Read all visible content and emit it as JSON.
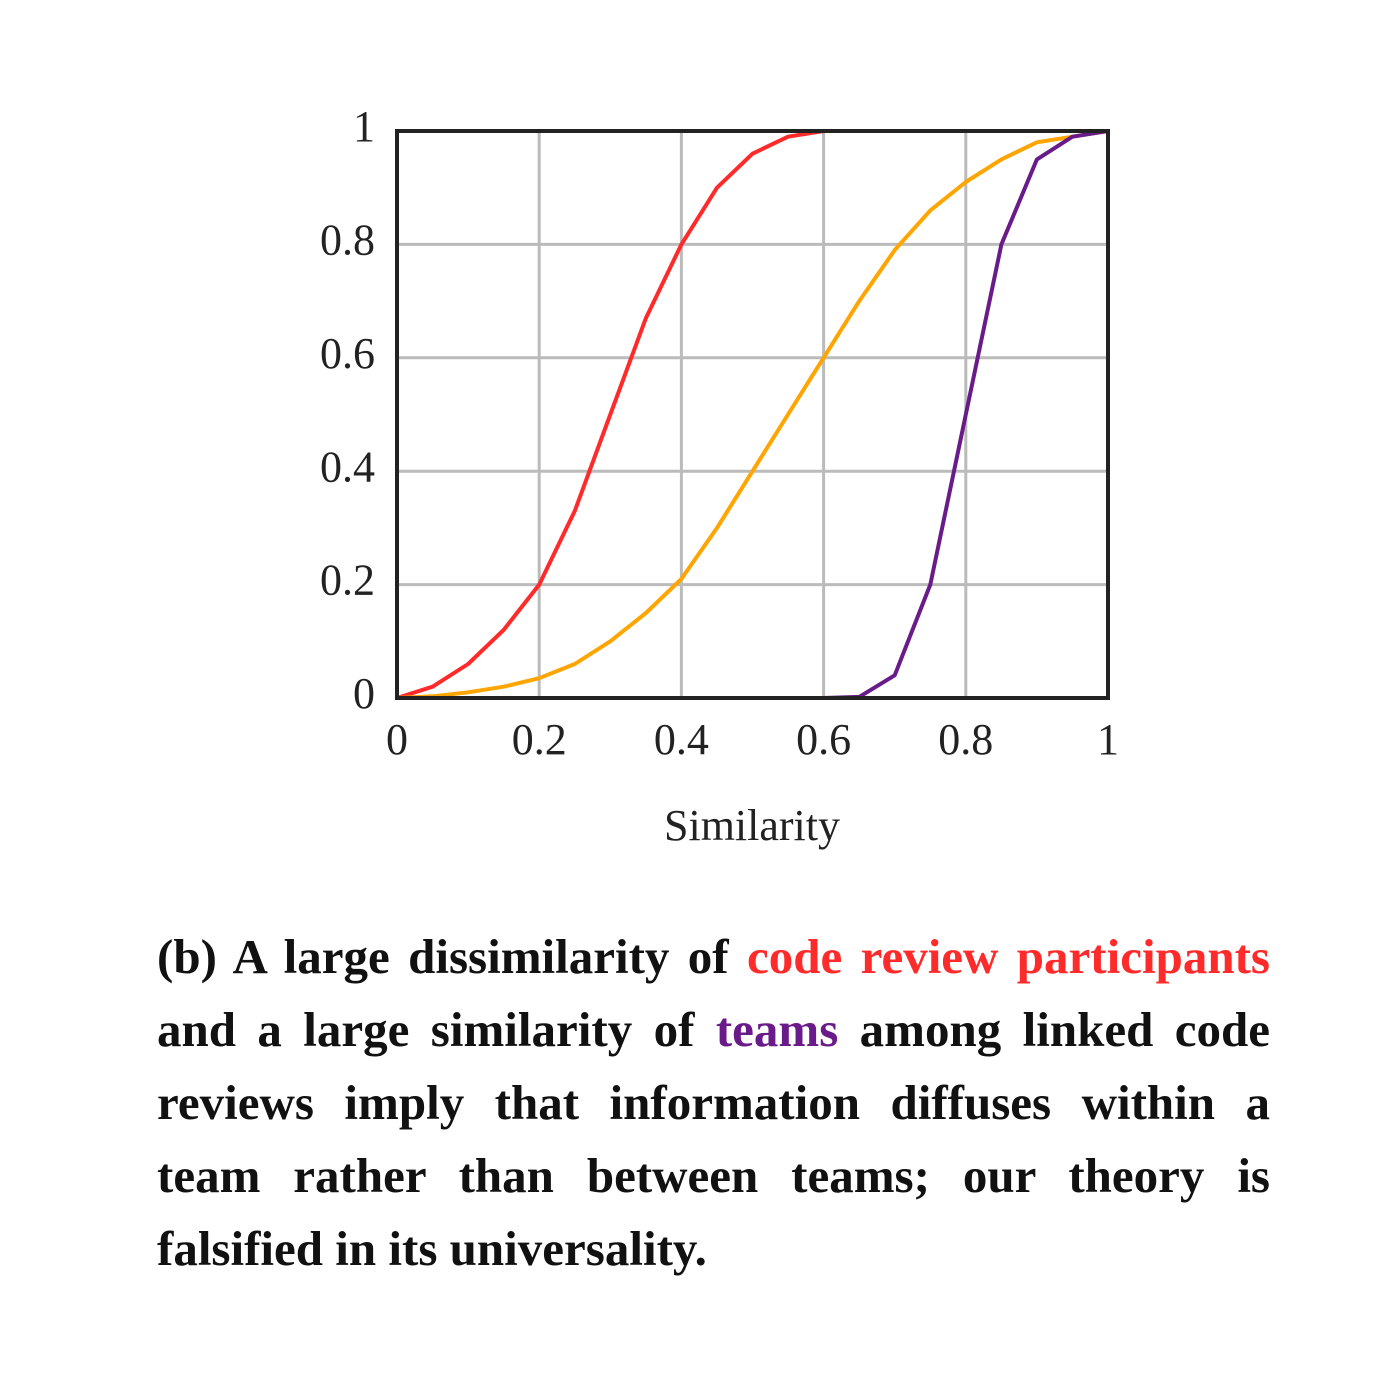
{
  "chart_data": {
    "type": "line",
    "x_label": "Similarity",
    "x": [
      0,
      0.05,
      0.1,
      0.15,
      0.2,
      0.25,
      0.3,
      0.35,
      0.4,
      0.45,
      0.5,
      0.55,
      0.6,
      0.65,
      0.7,
      0.75,
      0.8,
      0.85,
      0.9,
      0.95,
      1
    ],
    "series": [
      {
        "color": "#ff2a2a",
        "values": [
          0,
          0.02,
          0.06,
          0.12,
          0.2,
          0.33,
          0.5,
          0.67,
          0.8,
          0.9,
          0.96,
          0.99,
          1,
          1,
          1,
          1,
          1,
          1,
          1,
          1,
          1
        ]
      },
      {
        "color": "#ffa500",
        "values": [
          0,
          0.003,
          0.01,
          0.02,
          0.035,
          0.06,
          0.1,
          0.15,
          0.21,
          0.3,
          0.4,
          0.5,
          0.6,
          0.7,
          0.79,
          0.86,
          0.91,
          0.95,
          0.98,
          0.99,
          1
        ]
      },
      {
        "color": "#6a1b8a",
        "values": [
          0,
          0,
          0,
          0,
          0,
          0,
          0,
          0,
          0,
          0,
          0,
          0,
          0,
          0.002,
          0.04,
          0.2,
          0.5,
          0.8,
          0.95,
          0.99,
          1
        ]
      }
    ],
    "xlim": [
      0,
      1
    ],
    "ylim": [
      0,
      1
    ],
    "xticks": [
      0,
      0.2,
      0.4,
      0.6,
      0.8,
      1
    ],
    "yticks": [
      0,
      0.2,
      0.4,
      0.6,
      0.8,
      1
    ],
    "grid": true
  },
  "caption": {
    "parts": [
      {
        "text": "(b) A large dissimilarity of ",
        "color": "#111111"
      },
      {
        "text": "code review participants",
        "color": "#ff2a2a"
      },
      {
        "text": " and a large similarity of ",
        "color": "#111111"
      },
      {
        "text": "teams",
        "color": "#6a1b8a"
      },
      {
        "text": " among linked code reviews imply that information diffuses within a team rather than between teams; our theory is falsified in its universality.",
        "color": "#111111"
      }
    ]
  }
}
